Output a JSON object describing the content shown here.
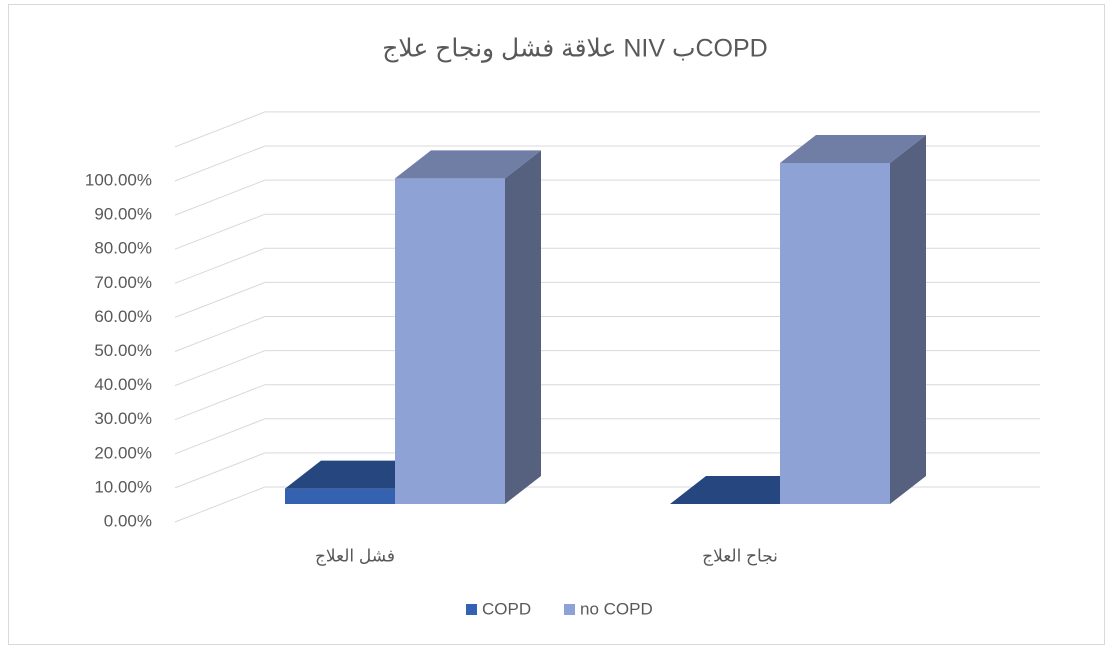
{
  "chart_data": {
    "type": "bar3d",
    "title": "علاقة فشل ونجاح علاج NIV بCOPD",
    "categories": [
      "فشل العلاج",
      "نجاح العلاج"
    ],
    "series": [
      {
        "name": "COPD",
        "color": "#3461b0",
        "values": [
          4.5,
          0
        ]
      },
      {
        "name": "no COPD",
        "color": "#8fa2d5",
        "values": [
          95.5,
          100
        ]
      }
    ],
    "ylim": [
      0,
      110
    ],
    "yticks": [
      {
        "value": 0,
        "label": "0.00%"
      },
      {
        "value": 10,
        "label": "10.00%"
      },
      {
        "value": 20,
        "label": "20.00%"
      },
      {
        "value": 30,
        "label": "30.00%"
      },
      {
        "value": 40,
        "label": "40.00%"
      },
      {
        "value": 50,
        "label": "50.00%"
      },
      {
        "value": 60,
        "label": "60.00%"
      },
      {
        "value": 70,
        "label": "70.00%"
      },
      {
        "value": 80,
        "label": "80.00%"
      },
      {
        "value": 90,
        "label": "90.00%"
      },
      {
        "value": 100,
        "label": "100.00%"
      }
    ],
    "grid": true,
    "legend": "bottom"
  }
}
